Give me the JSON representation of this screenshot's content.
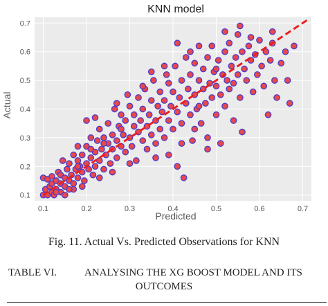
{
  "chart_data": {
    "type": "scatter",
    "title": "KNN model",
    "xlabel": "Predicted",
    "ylabel": "Actual",
    "xlim": [
      0.08,
      0.72
    ],
    "ylim": [
      0.08,
      0.72
    ],
    "xticks": [
      "0.1",
      "0.2",
      "0.3",
      "0.4",
      "0.5",
      "0.6",
      "0.7"
    ],
    "yticks": [
      "0.1",
      "0.2",
      "0.3",
      "0.4",
      "0.5",
      "0.6",
      "0.7"
    ],
    "grid": true,
    "background": "#ebebeb",
    "marker_fill": "#e8474b",
    "marker_edge": "#4b3cc9",
    "reference_line_color": "#e82020",
    "reference_line": {
      "x": [
        0.1,
        0.71
      ],
      "y": [
        0.1,
        0.71
      ]
    },
    "points": [
      {
        "x": 0.1,
        "y": 0.1
      },
      {
        "x": 0.1,
        "y": 0.16
      },
      {
        "x": 0.105,
        "y": 0.12
      },
      {
        "x": 0.11,
        "y": 0.1
      },
      {
        "x": 0.11,
        "y": 0.155
      },
      {
        "x": 0.115,
        "y": 0.13
      },
      {
        "x": 0.12,
        "y": 0.11
      },
      {
        "x": 0.12,
        "y": 0.14
      },
      {
        "x": 0.12,
        "y": 0.165
      },
      {
        "x": 0.125,
        "y": 0.1
      },
      {
        "x": 0.13,
        "y": 0.12
      },
      {
        "x": 0.13,
        "y": 0.15
      },
      {
        "x": 0.135,
        "y": 0.18
      },
      {
        "x": 0.14,
        "y": 0.11
      },
      {
        "x": 0.14,
        "y": 0.14
      },
      {
        "x": 0.14,
        "y": 0.17
      },
      {
        "x": 0.145,
        "y": 0.22
      },
      {
        "x": 0.15,
        "y": 0.13
      },
      {
        "x": 0.15,
        "y": 0.16
      },
      {
        "x": 0.155,
        "y": 0.19
      },
      {
        "x": 0.16,
        "y": 0.15
      },
      {
        "x": 0.16,
        "y": 0.21
      },
      {
        "x": 0.165,
        "y": 0.17
      },
      {
        "x": 0.17,
        "y": 0.14
      },
      {
        "x": 0.17,
        "y": 0.24
      },
      {
        "x": 0.175,
        "y": 0.19
      },
      {
        "x": 0.18,
        "y": 0.16
      },
      {
        "x": 0.18,
        "y": 0.22
      },
      {
        "x": 0.18,
        "y": 0.27
      },
      {
        "x": 0.185,
        "y": 0.2
      },
      {
        "x": 0.19,
        "y": 0.18
      },
      {
        "x": 0.19,
        "y": 0.24
      },
      {
        "x": 0.195,
        "y": 0.15
      },
      {
        "x": 0.2,
        "y": 0.21
      },
      {
        "x": 0.2,
        "y": 0.27
      },
      {
        "x": 0.2,
        "y": 0.36
      },
      {
        "x": 0.205,
        "y": 0.19
      },
      {
        "x": 0.21,
        "y": 0.23
      },
      {
        "x": 0.21,
        "y": 0.3
      },
      {
        "x": 0.215,
        "y": 0.17
      },
      {
        "x": 0.22,
        "y": 0.25
      },
      {
        "x": 0.22,
        "y": 0.2
      },
      {
        "x": 0.225,
        "y": 0.29
      },
      {
        "x": 0.23,
        "y": 0.22
      },
      {
        "x": 0.23,
        "y": 0.33
      },
      {
        "x": 0.235,
        "y": 0.26
      },
      {
        "x": 0.24,
        "y": 0.19
      },
      {
        "x": 0.24,
        "y": 0.3
      },
      {
        "x": 0.245,
        "y": 0.24
      },
      {
        "x": 0.25,
        "y": 0.28
      },
      {
        "x": 0.25,
        "y": 0.35
      },
      {
        "x": 0.255,
        "y": 0.21
      },
      {
        "x": 0.26,
        "y": 0.31
      },
      {
        "x": 0.26,
        "y": 0.26
      },
      {
        "x": 0.265,
        "y": 0.4
      },
      {
        "x": 0.27,
        "y": 0.29
      },
      {
        "x": 0.27,
        "y": 0.23
      },
      {
        "x": 0.275,
        "y": 0.34
      },
      {
        "x": 0.28,
        "y": 0.27
      },
      {
        "x": 0.28,
        "y": 0.38
      },
      {
        "x": 0.285,
        "y": 0.31
      },
      {
        "x": 0.29,
        "y": 0.25
      },
      {
        "x": 0.29,
        "y": 0.36
      },
      {
        "x": 0.295,
        "y": 0.45
      },
      {
        "x": 0.3,
        "y": 0.3
      },
      {
        "x": 0.3,
        "y": 0.41
      },
      {
        "x": 0.305,
        "y": 0.27
      },
      {
        "x": 0.31,
        "y": 0.34
      },
      {
        "x": 0.31,
        "y": 0.38
      },
      {
        "x": 0.315,
        "y": 0.22
      },
      {
        "x": 0.32,
        "y": 0.32
      },
      {
        "x": 0.32,
        "y": 0.44
      },
      {
        "x": 0.325,
        "y": 0.36
      },
      {
        "x": 0.33,
        "y": 0.29
      },
      {
        "x": 0.33,
        "y": 0.4
      },
      {
        "x": 0.335,
        "y": 0.47
      },
      {
        "x": 0.34,
        "y": 0.34
      },
      {
        "x": 0.34,
        "y": 0.26
      },
      {
        "x": 0.345,
        "y": 0.38
      },
      {
        "x": 0.35,
        "y": 0.43
      },
      {
        "x": 0.35,
        "y": 0.31
      },
      {
        "x": 0.355,
        "y": 0.5
      },
      {
        "x": 0.36,
        "y": 0.36
      },
      {
        "x": 0.36,
        "y": 0.28
      },
      {
        "x": 0.365,
        "y": 0.41
      },
      {
        "x": 0.37,
        "y": 0.33
      },
      {
        "x": 0.37,
        "y": 0.46
      },
      {
        "x": 0.375,
        "y": 0.39
      },
      {
        "x": 0.38,
        "y": 0.3
      },
      {
        "x": 0.38,
        "y": 0.43
      },
      {
        "x": 0.385,
        "y": 0.52
      },
      {
        "x": 0.39,
        "y": 0.36
      },
      {
        "x": 0.39,
        "y": 0.24
      },
      {
        "x": 0.395,
        "y": 0.41
      },
      {
        "x": 0.4,
        "y": 0.46
      },
      {
        "x": 0.4,
        "y": 0.33
      },
      {
        "x": 0.405,
        "y": 0.55
      },
      {
        "x": 0.41,
        "y": 0.39
      },
      {
        "x": 0.41,
        "y": 0.2
      },
      {
        "x": 0.415,
        "y": 0.44
      },
      {
        "x": 0.42,
        "y": 0.35
      },
      {
        "x": 0.42,
        "y": 0.5
      },
      {
        "x": 0.425,
        "y": 0.16
      },
      {
        "x": 0.43,
        "y": 0.42
      },
      {
        "x": 0.43,
        "y": 0.58
      },
      {
        "x": 0.435,
        "y": 0.47
      },
      {
        "x": 0.44,
        "y": 0.38
      },
      {
        "x": 0.44,
        "y": 0.52
      },
      {
        "x": 0.445,
        "y": 0.29
      },
      {
        "x": 0.45,
        "y": 0.45
      },
      {
        "x": 0.45,
        "y": 0.56
      },
      {
        "x": 0.455,
        "y": 0.4
      },
      {
        "x": 0.46,
        "y": 0.5
      },
      {
        "x": 0.46,
        "y": 0.62
      },
      {
        "x": 0.465,
        "y": 0.35
      },
      {
        "x": 0.47,
        "y": 0.47
      },
      {
        "x": 0.47,
        "y": 0.54
      },
      {
        "x": 0.475,
        "y": 0.42
      },
      {
        "x": 0.48,
        "y": 0.58
      },
      {
        "x": 0.48,
        "y": 0.3
      },
      {
        "x": 0.485,
        "y": 0.49
      },
      {
        "x": 0.49,
        "y": 0.44
      },
      {
        "x": 0.49,
        "y": 0.62
      },
      {
        "x": 0.495,
        "y": 0.53
      },
      {
        "x": 0.5,
        "y": 0.38
      },
      {
        "x": 0.5,
        "y": 0.48
      },
      {
        "x": 0.505,
        "y": 0.57
      },
      {
        "x": 0.51,
        "y": 0.45
      },
      {
        "x": 0.51,
        "y": 0.28
      },
      {
        "x": 0.515,
        "y": 0.52
      },
      {
        "x": 0.52,
        "y": 0.6
      },
      {
        "x": 0.52,
        "y": 0.41
      },
      {
        "x": 0.525,
        "y": 0.5
      },
      {
        "x": 0.53,
        "y": 0.47
      },
      {
        "x": 0.53,
        "y": 0.63
      },
      {
        "x": 0.535,
        "y": 0.55
      },
      {
        "x": 0.54,
        "y": 0.36
      },
      {
        "x": 0.54,
        "y": 0.49
      },
      {
        "x": 0.545,
        "y": 0.58
      },
      {
        "x": 0.55,
        "y": 0.52
      },
      {
        "x": 0.55,
        "y": 0.66
      },
      {
        "x": 0.555,
        "y": 0.44
      },
      {
        "x": 0.56,
        "y": 0.6
      },
      {
        "x": 0.56,
        "y": 0.32
      },
      {
        "x": 0.565,
        "y": 0.54
      },
      {
        "x": 0.57,
        "y": 0.5
      },
      {
        "x": 0.575,
        "y": 0.62
      },
      {
        "x": 0.58,
        "y": 0.57
      },
      {
        "x": 0.585,
        "y": 0.46
      },
      {
        "x": 0.59,
        "y": 0.59
      },
      {
        "x": 0.595,
        "y": 0.52
      },
      {
        "x": 0.6,
        "y": 0.64
      },
      {
        "x": 0.605,
        "y": 0.55
      },
      {
        "x": 0.61,
        "y": 0.48
      },
      {
        "x": 0.615,
        "y": 0.6
      },
      {
        "x": 0.62,
        "y": 0.38
      },
      {
        "x": 0.625,
        "y": 0.57
      },
      {
        "x": 0.63,
        "y": 0.63
      },
      {
        "x": 0.635,
        "y": 0.5
      },
      {
        "x": 0.64,
        "y": 0.44
      },
      {
        "x": 0.65,
        "y": 0.56
      },
      {
        "x": 0.66,
        "y": 0.6
      },
      {
        "x": 0.665,
        "y": 0.5
      },
      {
        "x": 0.67,
        "y": 0.42
      },
      {
        "x": 0.68,
        "y": 0.62
      },
      {
        "x": 0.555,
        "y": 0.69
      },
      {
        "x": 0.63,
        "y": 0.67
      },
      {
        "x": 0.41,
        "y": 0.63
      },
      {
        "x": 0.38,
        "y": 0.55
      },
      {
        "x": 0.33,
        "y": 0.48
      },
      {
        "x": 0.27,
        "y": 0.42
      },
      {
        "x": 0.22,
        "y": 0.37
      },
      {
        "x": 0.26,
        "y": 0.18
      },
      {
        "x": 0.3,
        "y": 0.21
      },
      {
        "x": 0.23,
        "y": 0.16
      },
      {
        "x": 0.19,
        "y": 0.13
      },
      {
        "x": 0.15,
        "y": 0.1
      },
      {
        "x": 0.17,
        "y": 0.12
      },
      {
        "x": 0.36,
        "y": 0.23
      },
      {
        "x": 0.45,
        "y": 0.33
      },
      {
        "x": 0.48,
        "y": 0.26
      },
      {
        "x": 0.39,
        "y": 0.49
      },
      {
        "x": 0.35,
        "y": 0.53
      },
      {
        "x": 0.44,
        "y": 0.6
      },
      {
        "x": 0.52,
        "y": 0.67
      },
      {
        "x": 0.58,
        "y": 0.65
      },
      {
        "x": 0.5,
        "y": 0.54
      },
      {
        "x": 0.46,
        "y": 0.41
      },
      {
        "x": 0.42,
        "y": 0.28
      },
      {
        "x": 0.28,
        "y": 0.33
      },
      {
        "x": 0.24,
        "y": 0.28
      },
      {
        "x": 0.21,
        "y": 0.26
      },
      {
        "x": 0.18,
        "y": 0.2
      },
      {
        "x": 0.16,
        "y": 0.12
      },
      {
        "x": 0.13,
        "y": 0.11
      }
    ]
  },
  "caption": "Fig. 11. Actual Vs. Predicted Observations for KNN",
  "table": {
    "label": "TABLE VI.",
    "title_line1": "ANALYSING THE XG BOOST MODEL AND ITS",
    "title_line2": "OUTCOMES"
  }
}
